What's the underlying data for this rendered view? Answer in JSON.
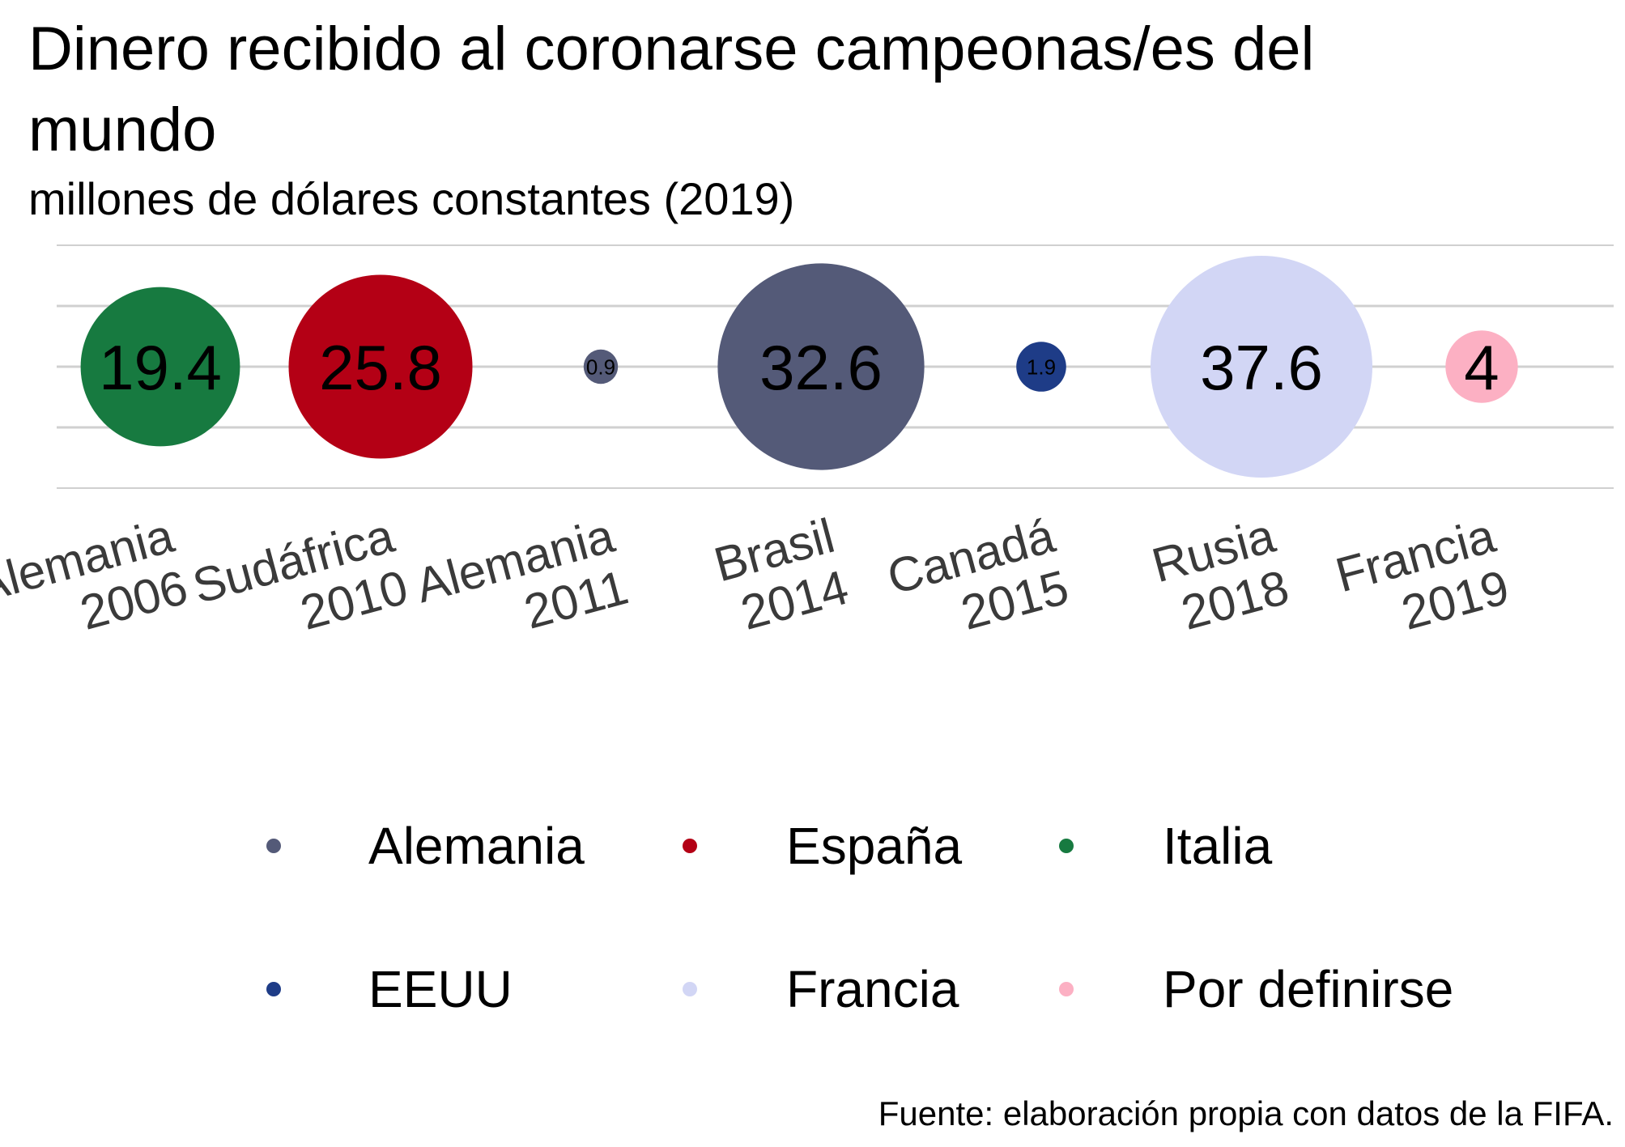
{
  "chart_data": {
    "type": "bubble",
    "title": "Dinero recibido al coronarse campeonas/es del mundo",
    "title_lines": [
      "Dinero recibido al coronarse campeonas/es del",
      "mundo"
    ],
    "subtitle": "millones de dólares constantes (2019)",
    "caption": "Fuente: elaboración propia con datos de la FIFA.",
    "grid": true,
    "legend_position": "bottom",
    "points": [
      {
        "label_line1": "Alemania",
        "label_line2": "2006",
        "value": 19.4,
        "value_label": "19.4",
        "group": "Italia"
      },
      {
        "label_line1": "Sudáfrica",
        "label_line2": "2010",
        "value": 25.8,
        "value_label": "25.8",
        "group": "España"
      },
      {
        "label_line1": "Alemania",
        "label_line2": "2011",
        "value": 0.9,
        "value_label": "0.9",
        "group": "Alemania"
      },
      {
        "label_line1": "Brasil",
        "label_line2": "2014",
        "value": 32.6,
        "value_label": "32.6",
        "group": "Alemania"
      },
      {
        "label_line1": "Canadá",
        "label_line2": "2015",
        "value": 1.9,
        "value_label": "1.9",
        "group": "EEUU"
      },
      {
        "label_line1": "Rusia",
        "label_line2": "2018",
        "value": 37.6,
        "value_label": "37.6",
        "group": "Francia"
      },
      {
        "label_line1": "Francia",
        "label_line2": "2019",
        "value": 4,
        "value_label": "4",
        "group": "Por definirse"
      }
    ],
    "legend": [
      {
        "name": "Alemania",
        "color": "#545a78"
      },
      {
        "name": "España",
        "color": "#b40015"
      },
      {
        "name": "Italia",
        "color": "#177a40"
      },
      {
        "name": "EEUU",
        "color": "#1e3c87"
      },
      {
        "name": "Francia",
        "color": "#d2d6f5"
      },
      {
        "name": "Por definirse",
        "color": "#fcb0c3"
      }
    ]
  }
}
